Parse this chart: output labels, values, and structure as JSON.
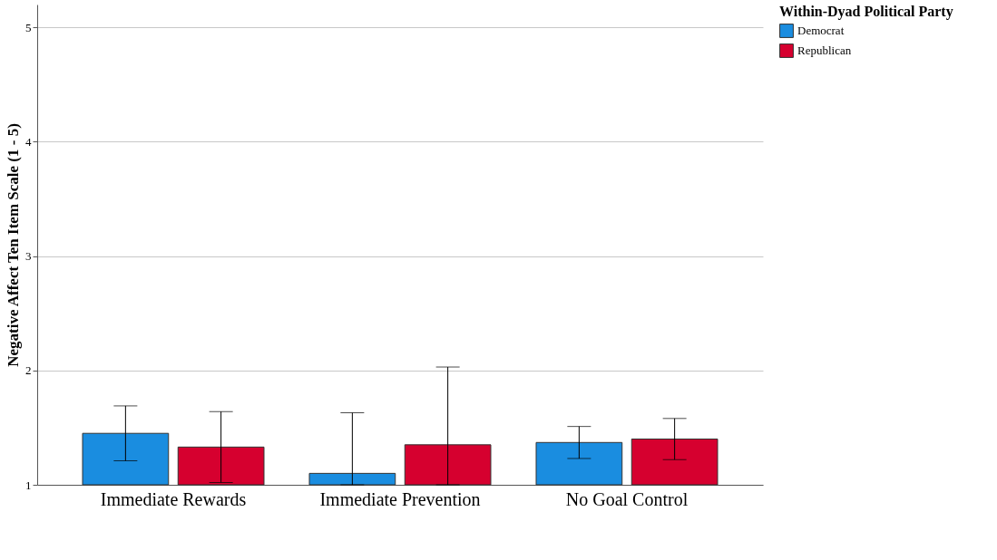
{
  "chart_data": {
    "type": "bar",
    "ylabel": "Negative Affect Ten Item Scale (1 - 5)",
    "legend_title": "Within-Dyad Political Party",
    "categories": [
      "Immediate Rewards",
      "Immediate Prevention",
      "No Goal Control"
    ],
    "series": [
      {
        "name": "Democrat",
        "color": "#1a8de0",
        "values": [
          1.45,
          1.1,
          1.37
        ],
        "errors": [
          [
            1.21,
            1.69
          ],
          [
            1.0,
            1.63
          ],
          [
            1.23,
            1.51
          ]
        ]
      },
      {
        "name": "Republican",
        "color": "#d6002f",
        "values": [
          1.33,
          1.35,
          1.4
        ],
        "errors": [
          [
            1.02,
            1.64
          ],
          [
            1.0,
            2.03
          ],
          [
            1.22,
            1.58
          ]
        ]
      }
    ],
    "ylim": [
      1,
      5.2
    ],
    "yticks": [
      1,
      2,
      3,
      4,
      5
    ],
    "grid": "y",
    "legend": "top right"
  }
}
